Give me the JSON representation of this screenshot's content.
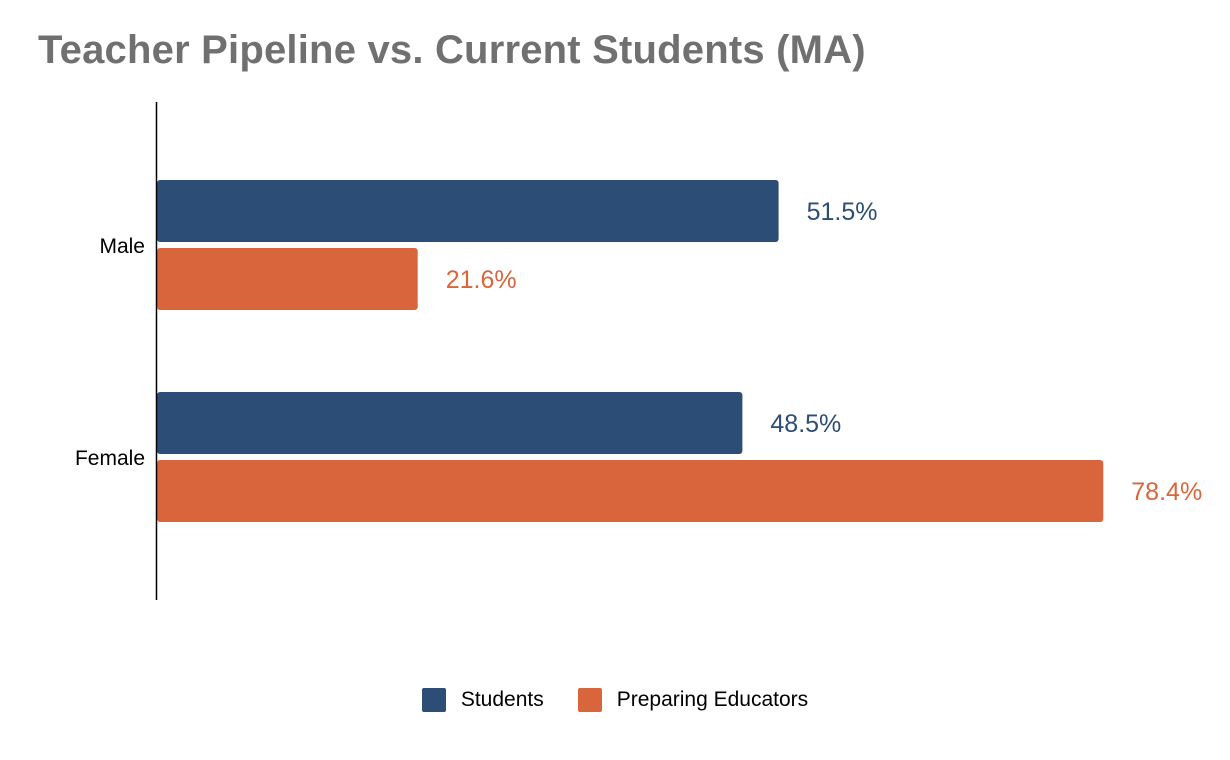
{
  "colors": {
    "title": "#707070",
    "axis": "#000000",
    "students": "#2c4d75",
    "educators": "#d9653c"
  },
  "chart_data": {
    "type": "bar",
    "orientation": "horizontal",
    "title": "Teacher Pipeline vs. Current Students (MA)",
    "categories": [
      "Male",
      "Female"
    ],
    "series": [
      {
        "name": "Students",
        "values": [
          51.5,
          48.5
        ],
        "labels": [
          "51.5%",
          "48.5%"
        ],
        "color": "#2c4d75"
      },
      {
        "name": "Preparing Educators",
        "values": [
          21.6,
          78.4
        ],
        "labels": [
          "21.6%",
          "78.4%"
        ],
        "color": "#d9653c"
      }
    ],
    "xlim": [
      0,
      100
    ],
    "grid": false,
    "legend": "bottom-center",
    "xlabel": "",
    "ylabel": ""
  }
}
